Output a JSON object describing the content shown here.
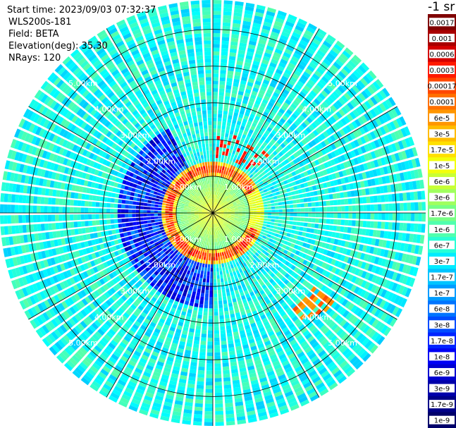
{
  "header": {
    "start_time": "Start time: 2023/09/03 07:32:37",
    "instrument": "WLS200s-181",
    "field": "Field: BETA",
    "elevation": "Elevation(deg): 35.30",
    "nrays": "NRays: 120"
  },
  "colorbar": {
    "title": "-1 sr",
    "labels": [
      "0.0017",
      "0.001",
      "0.0006",
      "0.0003",
      "0.00017",
      "0.0001",
      "6e-5",
      "3e-5",
      "1.7e-5",
      "1e-5",
      "6e-6",
      "3e-6",
      "1.7e-6",
      "1e-6",
      "6e-7",
      "3e-7",
      "1.7e-7",
      "1e-7",
      "6e-8",
      "3e-8",
      "1.7e-8",
      "1e-8",
      "6e-9",
      "3e-9",
      "1.7e-9",
      "1e-9"
    ],
    "colors": [
      "#7f0000",
      "#a80000",
      "#d40000",
      "#ff1a00",
      "#ff4800",
      "#ff7000",
      "#ff9600",
      "#ffbc00",
      "#ffe000",
      "#f2ff0c",
      "#c8ff36",
      "#a0ff5e",
      "#78ff86",
      "#50ffae",
      "#28ffd6",
      "#00ecff",
      "#00c4ff",
      "#009cff",
      "#0074ff",
      "#004cff",
      "#0024ff",
      "#0000f5",
      "#0000d0",
      "#0000aa",
      "#000088",
      "#00006a"
    ]
  },
  "chart_data": {
    "type": "heatmap",
    "projection": "polar (PPI scan)",
    "field": "BETA",
    "units": "sr-1",
    "scale": "log",
    "color_range": [
      1e-09,
      0.0017
    ],
    "nrays": 120,
    "elevation_deg": 35.3,
    "range_rings_km": [
      1.0,
      2.0,
      3.0,
      4.0,
      5.0
    ],
    "max_range_km": 5.8,
    "range_labels": [
      "1.00km",
      "2.00km",
      "3.00km",
      "4.00km",
      "5.00km"
    ],
    "grid_spokes_deg": [
      0,
      30,
      60,
      90,
      120,
      150,
      180,
      210,
      240,
      270,
      300,
      330
    ],
    "background_value": "≈3e-7",
    "features": [
      {
        "description": "near-range high backscatter",
        "range_km": [
          0,
          1.0
        ],
        "value": "≈1e-5"
      },
      {
        "description": "ring of strong returns",
        "range_km": [
          1.05,
          1.45
        ],
        "value": "≈1e-4 to 3e-4"
      },
      {
        "description": "reduced returns",
        "range_km": [
          1.0,
          2.5
        ],
        "azimuth_deg": [
          180,
          330
        ],
        "value": "≈3e-8 to 6e-9"
      }
    ]
  }
}
